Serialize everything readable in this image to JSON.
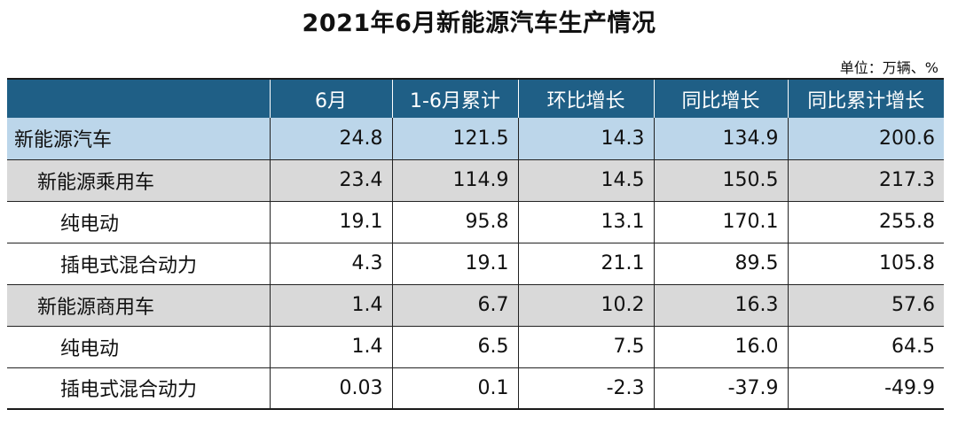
{
  "title": "2021年6月新能源汽车生产情况",
  "unit_label": "单位：万辆、%",
  "chart_data": {
    "type": "table",
    "title": "2021年6月新能源汽车生产情况",
    "columns": [
      "",
      "6月",
      "1-6月累计",
      "环比增长",
      "同比增长",
      "同比累计增长"
    ],
    "rows": [
      {
        "label": "新能源汽车",
        "level": 0,
        "values": [
          "24.8",
          "121.5",
          "14.3",
          "134.9",
          "200.6"
        ]
      },
      {
        "label": "新能源乘用车",
        "level": 1,
        "values": [
          "23.4",
          "114.9",
          "14.5",
          "150.5",
          "217.3"
        ]
      },
      {
        "label": "纯电动",
        "level": 2,
        "values": [
          "19.1",
          "95.8",
          "13.1",
          "170.1",
          "255.8"
        ]
      },
      {
        "label": "插电式混合动力",
        "level": 2,
        "values": [
          "4.3",
          "19.1",
          "21.1",
          "89.5",
          "105.8"
        ]
      },
      {
        "label": "新能源商用车",
        "level": 1,
        "values": [
          "1.4",
          "6.7",
          "10.2",
          "16.3",
          "57.6"
        ]
      },
      {
        "label": "纯电动",
        "level": 2,
        "values": [
          "1.4",
          "6.5",
          "7.5",
          "16.0",
          "64.5"
        ]
      },
      {
        "label": "插电式混合动力",
        "level": 2,
        "values": [
          "0.03",
          "0.1",
          "-2.3",
          "-37.9",
          "-49.9"
        ]
      }
    ]
  },
  "colors": {
    "header_bg": "#1f5f86",
    "level0_bg": "#bcd6ea",
    "level1_bg": "#d9d9d9"
  }
}
